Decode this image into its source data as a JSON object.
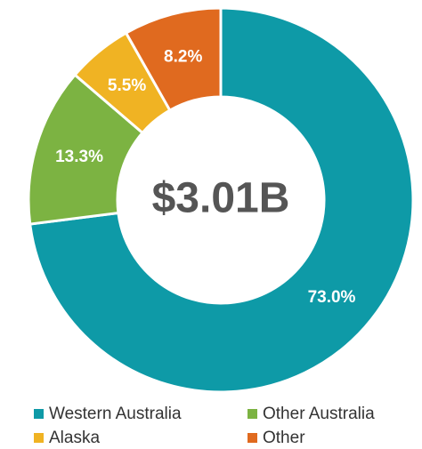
{
  "chart_data": {
    "type": "pie",
    "center_label": "$3.01B",
    "categories": [
      "Western Australia",
      "Other Australia",
      "Alaska",
      "Other"
    ],
    "values": [
      73.0,
      13.3,
      5.5,
      8.2
    ],
    "value_labels": [
      "73.0%",
      "13.3%",
      "5.5%",
      "8.2%"
    ],
    "colors": [
      "#0e9aa7",
      "#7cb342",
      "#f0b323",
      "#e06a1f"
    ],
    "legend": "bottom"
  }
}
